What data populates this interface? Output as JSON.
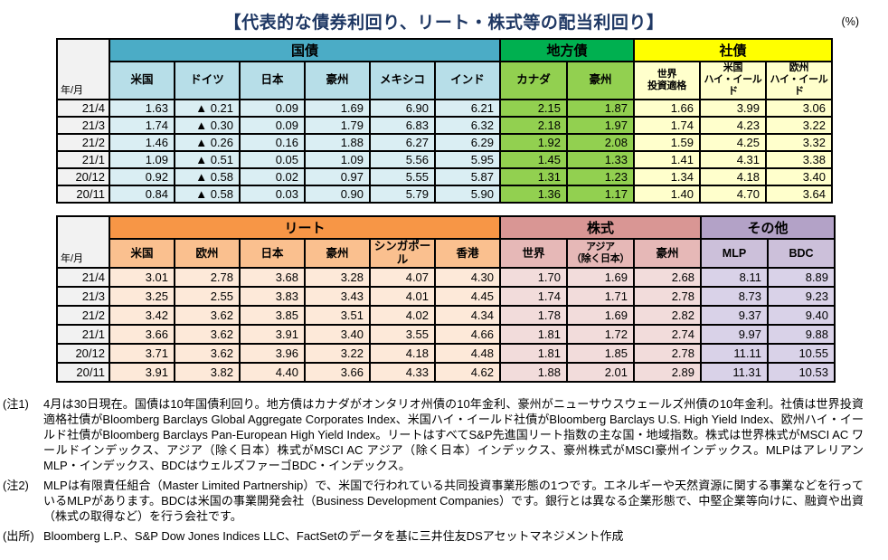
{
  "page": {
    "title": "【代表的な債券利回り、リート・株式等の配当利回り】",
    "unit": "(%)"
  },
  "tables": {
    "row_header_label": "年/月",
    "months": [
      "21/4",
      "21/3",
      "21/2",
      "21/1",
      "20/12",
      "20/11"
    ],
    "bond": {
      "groups": [
        {
          "id": "govt",
          "label": "国債",
          "columns": [
            "米国",
            "ドイツ",
            "日本",
            "豪州",
            "メキシコ",
            "インド"
          ],
          "colors": {
            "header": "#4BACC6",
            "subheader": "#B7DEE8",
            "cell": "#DAEEF3"
          },
          "rows": [
            [
              "1.63",
              "▲ 0.21",
              "0.09",
              "1.69",
              "6.90",
              "6.21"
            ],
            [
              "1.74",
              "▲ 0.30",
              "0.09",
              "1.79",
              "6.83",
              "6.32"
            ],
            [
              "1.46",
              "▲ 0.26",
              "0.16",
              "1.88",
              "6.27",
              "6.29"
            ],
            [
              "1.09",
              "▲ 0.51",
              "0.05",
              "1.09",
              "5.56",
              "5.95"
            ],
            [
              "0.92",
              "▲ 0.58",
              "0.02",
              "0.97",
              "5.55",
              "5.87"
            ],
            [
              "0.84",
              "▲ 0.58",
              "0.03",
              "0.90",
              "5.79",
              "5.90"
            ]
          ]
        },
        {
          "id": "muni",
          "label": "地方債",
          "columns": [
            "カナダ",
            "豪州"
          ],
          "colors": {
            "header": "#00B050",
            "subheader": "#92D050",
            "cell": "#92D050"
          },
          "rows": [
            [
              "2.15",
              "1.87"
            ],
            [
              "2.18",
              "1.97"
            ],
            [
              "1.92",
              "2.08"
            ],
            [
              "1.45",
              "1.33"
            ],
            [
              "1.31",
              "1.23"
            ],
            [
              "1.36",
              "1.17"
            ]
          ]
        },
        {
          "id": "corp",
          "label": "社債",
          "columns": [
            "世界\n投資適格",
            "米国\nハイ・イールド",
            "欧州\nハイ・イールド"
          ],
          "colors": {
            "header": "#FFFF00",
            "subheader": "#FFFFCC",
            "cell": "#FFFFCC"
          },
          "rows": [
            [
              "1.66",
              "3.99",
              "3.06"
            ],
            [
              "1.74",
              "4.23",
              "3.22"
            ],
            [
              "1.59",
              "4.25",
              "3.32"
            ],
            [
              "1.41",
              "4.31",
              "3.38"
            ],
            [
              "1.34",
              "4.18",
              "3.40"
            ],
            [
              "1.40",
              "4.70",
              "3.64"
            ]
          ]
        }
      ]
    },
    "equity": {
      "groups": [
        {
          "id": "reit",
          "label": "リート",
          "columns": [
            "米国",
            "欧州",
            "日本",
            "豪州",
            "シンガポール",
            "香港"
          ],
          "colors": {
            "header": "#F79646",
            "subheader": "#FAC08F",
            "cell": "#FDE9D9"
          },
          "rows": [
            [
              "3.01",
              "2.78",
              "3.68",
              "3.28",
              "4.07",
              "4.30"
            ],
            [
              "3.25",
              "2.55",
              "3.83",
              "3.43",
              "4.01",
              "4.45"
            ],
            [
              "3.42",
              "3.62",
              "3.85",
              "3.51",
              "4.02",
              "4.34"
            ],
            [
              "3.66",
              "3.62",
              "3.91",
              "3.40",
              "3.55",
              "4.66"
            ],
            [
              "3.71",
              "3.62",
              "3.96",
              "3.22",
              "4.18",
              "4.48"
            ],
            [
              "3.91",
              "3.82",
              "4.40",
              "3.66",
              "4.33",
              "4.62"
            ]
          ]
        },
        {
          "id": "stocks",
          "label": "株式",
          "columns": [
            "世界",
            "アジア\n（除く日本）",
            "豪州"
          ],
          "colors": {
            "header": "#D99694",
            "subheader": "#E6B8B7",
            "cell": "#F2DCDB"
          },
          "rows": [
            [
              "1.70",
              "1.69",
              "2.68"
            ],
            [
              "1.74",
              "1.71",
              "2.78"
            ],
            [
              "1.78",
              "1.69",
              "2.82"
            ],
            [
              "1.81",
              "1.72",
              "2.74"
            ],
            [
              "1.81",
              "1.85",
              "2.78"
            ],
            [
              "1.88",
              "2.01",
              "2.89"
            ]
          ]
        },
        {
          "id": "other",
          "label": "その他",
          "columns": [
            "MLP",
            "BDC"
          ],
          "colors": {
            "header": "#B3A2C7",
            "subheader": "#CCC0DA",
            "cell": "#D9D2E8"
          },
          "rows": [
            [
              "8.11",
              "8.89"
            ],
            [
              "8.73",
              "9.23"
            ],
            [
              "9.37",
              "9.40"
            ],
            [
              "9.97",
              "9.88"
            ],
            [
              "11.11",
              "10.55"
            ],
            [
              "11.31",
              "10.53"
            ]
          ]
        }
      ]
    }
  },
  "notes": [
    {
      "label": "(注1)",
      "text": "4月は30日現在。国債は10年国債利回り。地方債はカナダがオンタリオ州債の10年金利、豪州がニューサウスウェールズ州債の10年金利。社債は世界投資適格社債がBloomberg Barclays Global Aggregate Corporates Index、米国ハイ・イールド社債がBloomberg Barclays U.S. High Yield Index、欧州ハイ・イールド社債がBloomberg Barclays Pan-European High Yield Index。リートはすべてS&P先進国リート指数の主な国・地域指数。株式は世界株式がMSCI AC ワールドインデックス、アジア（除く日本）株式がMSCI AC アジア（除く日本）インデックス、豪州株式がMSCI豪州インデックス。MLPはアレリアンMLP・インデックス、BDCはウェルズファーゴBDC・インデックス。"
    },
    {
      "label": "(注2)",
      "text": "MLPは有限責任組合（Master Limited Partnership）で、米国で行われている共同投資事業形態の1つです。エネルギーや天然資源に関する事業などを行っているMLPがあります。BDCは米国の事業開発会社（Business Development Companies）です。銀行とは異なる企業形態で、中堅企業等向けに、融資や出資（株式の取得など）を行う会社です。"
    }
  ],
  "source": {
    "label": "(出所)",
    "text": "Bloomberg L.P.、S&P Dow Jones Indices LLC、FactSetのデータを基に三井住友DSアセットマネジメント作成"
  }
}
